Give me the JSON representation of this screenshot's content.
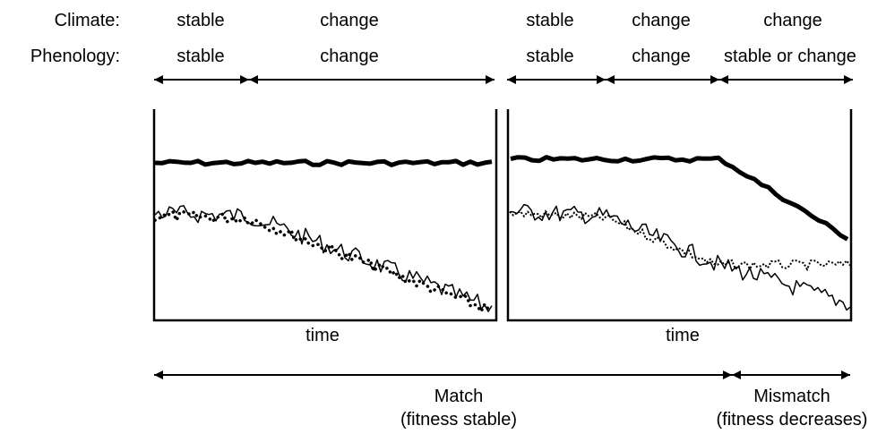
{
  "row_labels": {
    "climate": "Climate:",
    "phenology": "Phenology:"
  },
  "left_panel": {
    "climate": [
      "stable",
      "change"
    ],
    "phenology": [
      "stable",
      "change"
    ],
    "xlabel": "time"
  },
  "right_panel": {
    "climate": [
      "stable",
      "change",
      "change"
    ],
    "phenology": [
      "stable",
      "change",
      "stable or change"
    ],
    "xlabel": "time"
  },
  "bottom": {
    "match": "Match",
    "match_sub": "(fitness stable)",
    "mismatch": "Mismatch",
    "mismatch_sub": "(fitness decreases)"
  },
  "colors": {
    "ink": "#000000",
    "background": "#ffffff"
  }
}
